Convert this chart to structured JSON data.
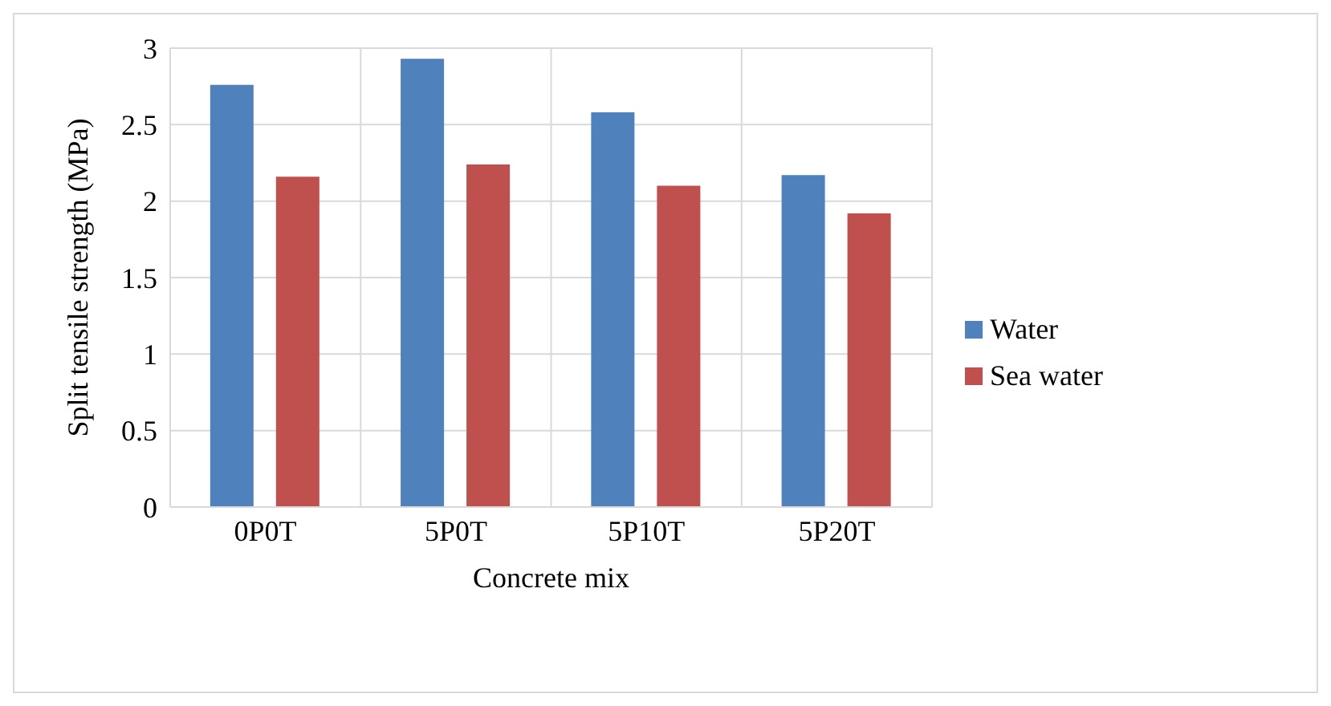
{
  "chart_data": {
    "type": "bar",
    "xlabel": "Concrete mix",
    "ylabel": "Split tensile strength (MPa)",
    "categories": [
      "0P0T",
      "5P0T",
      "5P10T",
      "5P20T"
    ],
    "series": [
      {
        "name": "Water",
        "color": "#4f81bd",
        "values": [
          2.76,
          2.93,
          2.58,
          2.17
        ]
      },
      {
        "name": "Sea water",
        "color": "#c0504d",
        "values": [
          2.16,
          2.24,
          2.1,
          1.92
        ]
      }
    ],
    "ylim": [
      0,
      3
    ],
    "yticks": [
      0,
      0.5,
      1,
      1.5,
      2,
      2.5,
      3
    ],
    "grid": true,
    "legend": "right"
  }
}
